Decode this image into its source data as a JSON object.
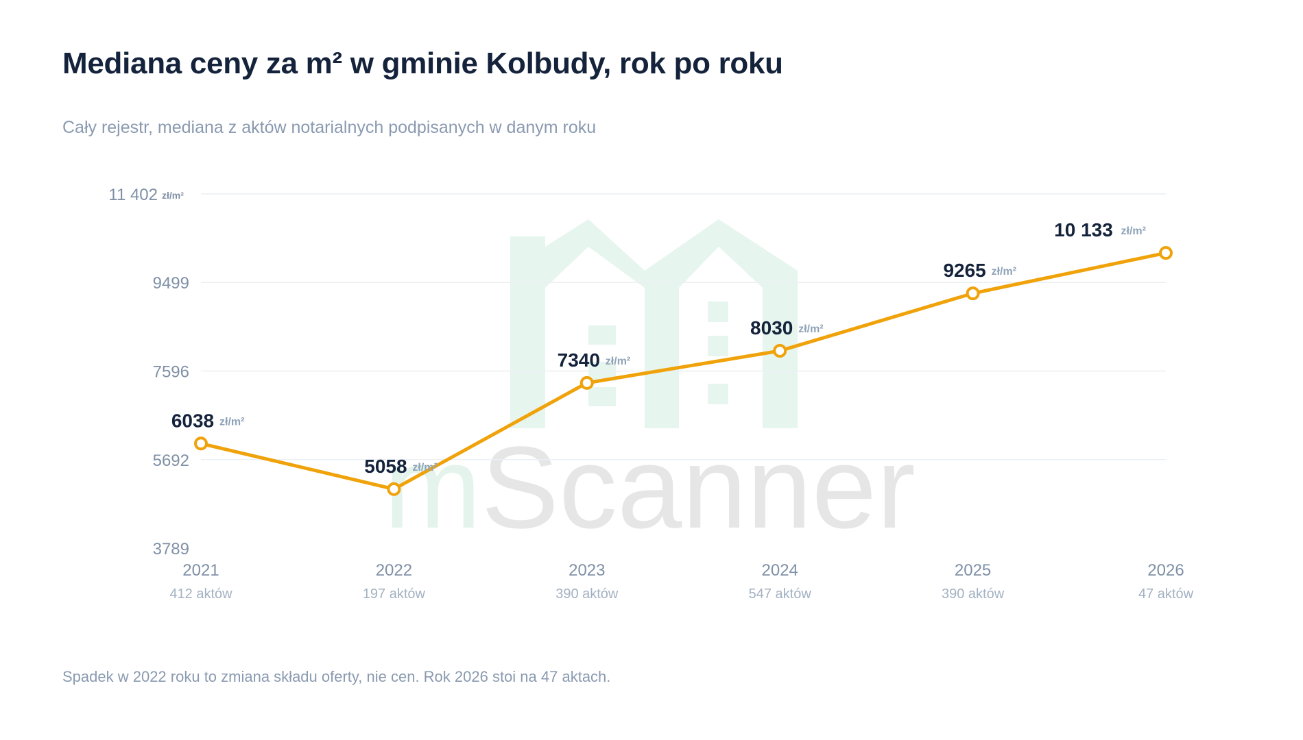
{
  "title": "Mediana ceny za m² w gminie Kolbudy, rok po roku",
  "subtitle": "Cały rejestr, mediana z aktów notarialnych podpisanych w danym roku",
  "footnote": "Spadek w 2022 roku to zmiana składu oferty, nie cen. Rok 2026 stoi na 47 aktach.",
  "watermark": {
    "text_prefix": "m",
    "text_rest": "Scanner",
    "icon": "house-logo-icon"
  },
  "colors": {
    "line": "#f0a20a",
    "watermark_house": "#e6f5ee",
    "watermark_m": "#e4f4ec",
    "watermark_text": "#e6e6e6"
  },
  "chart_data": {
    "type": "line",
    "title": "Mediana ceny za m² w gminie Kolbudy, rok po roku",
    "subtitle": "Cały rejestr, mediana z aktów notarialnych podpisanych w danym roku",
    "unit": "zł/m²",
    "categories": [
      "2021",
      "2022",
      "2023",
      "2024",
      "2025",
      "2026"
    ],
    "category_sublabels": [
      "412 aktów",
      "197 aktów",
      "390 aktów",
      "547 aktów",
      "390 aktów",
      "47 aktów"
    ],
    "values": [
      6038,
      5058,
      7340,
      8030,
      9265,
      10133
    ],
    "value_labels": [
      "6038",
      "5058",
      "7340",
      "8030",
      "9265",
      "10 133"
    ],
    "y_ticks": [
      3789,
      5692,
      7596,
      9499,
      11402
    ],
    "y_tick_labels": [
      "3789",
      "5692",
      "7596",
      "9499",
      "11 402"
    ],
    "y_top_unit": "zł/m²",
    "ylim": [
      3789,
      11402
    ],
    "grid": true,
    "legend": "none"
  }
}
